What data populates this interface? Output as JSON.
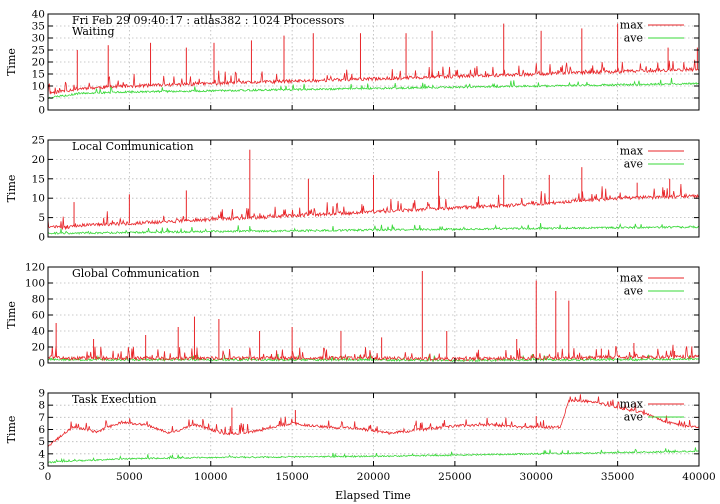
{
  "chart_data": {
    "type": "line",
    "x_label": "Elapsed Time",
    "x_range": [
      0,
      40000
    ],
    "x_ticks": [
      0,
      5000,
      10000,
      15000,
      20000,
      25000,
      30000,
      35000,
      40000
    ],
    "grid": true,
    "legend_placement": "top-right",
    "colors": {
      "max": "#e8262a",
      "ave": "#38d838"
    },
    "panels": [
      {
        "id": "waiting",
        "title_lines": [
          "Fri Feb 29 09:40:17 : atlas382 : 1024 Processors",
          "Waiting"
        ],
        "y_label": "Time",
        "y_range": [
          0,
          40
        ],
        "y_ticks": [
          0,
          5,
          10,
          15,
          20,
          25,
          30,
          35,
          40
        ],
        "series": [
          {
            "name": "max",
            "x": [
              0,
              1000,
              2000,
              5000,
              10000,
              15000,
              20000,
              25000,
              30000,
              35000,
              40000
            ],
            "values": [
              7,
              8,
              9,
              10,
              11,
              12,
              13,
              14,
              15,
              16,
              17
            ],
            "peaks": [
              [
                1800,
                25
              ],
              [
                3700,
                27
              ],
              [
                6300,
                28
              ],
              [
                8500,
                26
              ],
              [
                10200,
                28
              ],
              [
                12500,
                29
              ],
              [
                14500,
                31
              ],
              [
                16300,
                32
              ],
              [
                19200,
                32
              ],
              [
                22000,
                32
              ],
              [
                23600,
                33
              ],
              [
                28000,
                36
              ],
              [
                30300,
                33
              ],
              [
                32800,
                34
              ],
              [
                35000,
                36
              ],
              [
                38100,
                26
              ],
              [
                39900,
                26
              ]
            ]
          },
          {
            "name": "ave",
            "x": [
              0,
              1000,
              2000,
              5000,
              10000,
              15000,
              20000,
              25000,
              30000,
              35000,
              40000
            ],
            "values": [
              5,
              6,
              7,
              7.5,
              8,
              8.5,
              9,
              9.5,
              10,
              10.5,
              11
            ]
          }
        ]
      },
      {
        "id": "local",
        "title_lines": [
          "Local Communication"
        ],
        "y_label": "Time",
        "y_range": [
          0,
          25
        ],
        "y_ticks": [
          0,
          5,
          10,
          15,
          20,
          25
        ],
        "series": [
          {
            "name": "max",
            "x": [
              0,
              1000,
              2000,
              5000,
              10000,
              15000,
              20000,
              25000,
              30000,
              35000,
              40000
            ],
            "values": [
              2.5,
              2.5,
              3,
              3.5,
              4.5,
              5.5,
              6.5,
              7.5,
              8.5,
              10,
              10.5
            ],
            "peaks": [
              [
                1600,
                9
              ],
              [
                5000,
                11
              ],
              [
                8500,
                12
              ],
              [
                12400,
                22.5
              ],
              [
                16000,
                15
              ],
              [
                20000,
                16
              ],
              [
                24000,
                17
              ],
              [
                28000,
                16
              ],
              [
                30800,
                16
              ],
              [
                32800,
                18
              ],
              [
                36200,
                14
              ],
              [
                38200,
                15
              ]
            ]
          },
          {
            "name": "ave",
            "x": [
              0,
              1000,
              2000,
              5000,
              10000,
              15000,
              20000,
              25000,
              30000,
              35000,
              40000
            ],
            "values": [
              1,
              1,
              1,
              1.2,
              1.4,
              1.6,
              1.8,
              2,
              2.2,
              2.4,
              2.6
            ]
          }
        ]
      },
      {
        "id": "global",
        "title_lines": [
          "Global Communication"
        ],
        "y_label": "Time",
        "y_range": [
          0,
          120
        ],
        "y_ticks": [
          0,
          20,
          40,
          60,
          80,
          100,
          120
        ],
        "series": [
          {
            "name": "max",
            "x": [
              0,
              1000,
              2000,
              5000,
              10000,
              15000,
              20000,
              25000,
              30000,
              35000,
              40000
            ],
            "values": [
              8,
              6,
              6,
              6,
              6,
              6,
              6,
              5,
              6,
              7,
              8
            ],
            "peaks": [
              [
                500,
                50
              ],
              [
                2800,
                30
              ],
              [
                6000,
                35
              ],
              [
                8000,
                45
              ],
              [
                9000,
                58
              ],
              [
                10500,
                55
              ],
              [
                13000,
                40
              ],
              [
                15000,
                45
              ],
              [
                18000,
                40
              ],
              [
                20500,
                32
              ],
              [
                23000,
                115
              ],
              [
                24500,
                40
              ],
              [
                28800,
                30
              ],
              [
                30000,
                103
              ],
              [
                31200,
                90
              ],
              [
                32000,
                78
              ],
              [
                34000,
                18
              ],
              [
                36000,
                25
              ],
              [
                38500,
                15
              ]
            ]
          },
          {
            "name": "ave",
            "x": [
              0,
              1000,
              2000,
              5000,
              10000,
              15000,
              20000,
              25000,
              30000,
              35000,
              40000
            ],
            "values": [
              5,
              4,
              4,
              4,
              4,
              4,
              4,
              3,
              4,
              4,
              5
            ]
          }
        ]
      },
      {
        "id": "task",
        "title_lines": [
          "Task Execution"
        ],
        "y_label": "Time",
        "y_range": [
          3,
          9
        ],
        "y_ticks": [
          3,
          4,
          5,
          6,
          7,
          8,
          9
        ],
        "series": [
          {
            "name": "max",
            "x": [
              0,
              1500,
              3000,
              4500,
              6000,
              7500,
              9000,
              11000,
              12500,
              15000,
              17000,
              19000,
              21000,
              23000,
              25000,
              27000,
              29000,
              31500,
              32000,
              33500,
              35000,
              36500,
              38000,
              39500
            ],
            "values": [
              4.6,
              6.2,
              5.8,
              6.6,
              6.4,
              5.7,
              6.4,
              5.6,
              5.8,
              6.5,
              6.2,
              6.1,
              5.7,
              6,
              6.3,
              6.4,
              6.2,
              6.2,
              8.4,
              8.3,
              7.8,
              7.4,
              6.6,
              6.2
            ],
            "peaks": [
              [
                11300,
                7.8
              ],
              [
                15200,
                7.6
              ],
              [
                30000,
                7.1
              ]
            ]
          },
          {
            "name": "ave",
            "x": [
              0,
              1500,
              5000,
              10000,
              15000,
              20000,
              25000,
              30000,
              35000,
              39500
            ],
            "values": [
              3.3,
              3.4,
              3.6,
              3.7,
              3.75,
              3.8,
              3.9,
              4,
              4.1,
              4.2
            ]
          }
        ]
      }
    ]
  }
}
